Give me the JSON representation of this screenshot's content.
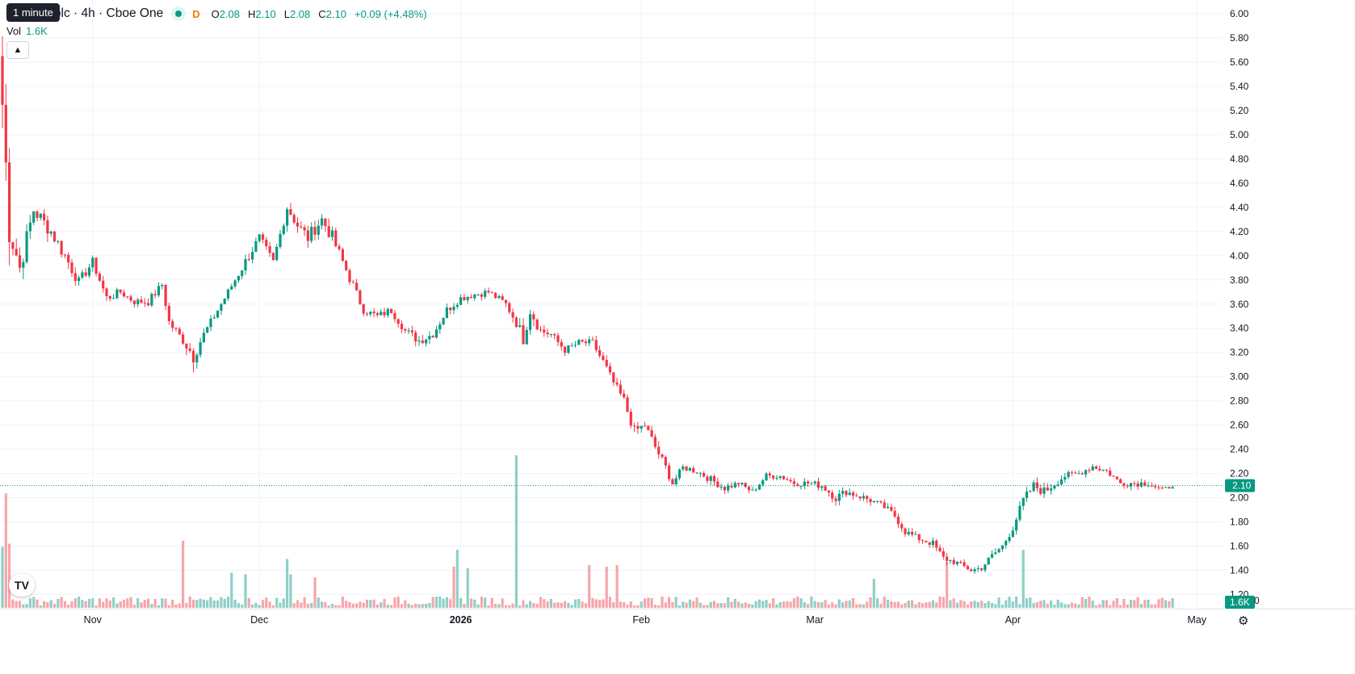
{
  "header": {
    "tooltip": "1 minute",
    "title": "a plc · 4h · Cboe One",
    "market_status_dot": "green-dot-icon",
    "d_marker": "D",
    "ohlc": [
      {
        "label": "O",
        "value": "2.08"
      },
      {
        "label": "H",
        "value": "2.10"
      },
      {
        "label": "L",
        "value": "2.08"
      },
      {
        "label": "C",
        "value": "2.10"
      }
    ],
    "change": "+0.09 (+4.48%)"
  },
  "volume_legend": {
    "label": "Vol",
    "value": "1.6K"
  },
  "collapse_icon": "chevron-up-icon",
  "logo_text": "TV",
  "settings_icon": "gear-icon",
  "colors": {
    "up": "#089981",
    "down": "#f23645",
    "up_vol": "#8fcfc6",
    "down_vol": "#f6a6ab",
    "grid": "#f0f3fa",
    "price_line": "#089981"
  },
  "chart_data": {
    "type": "candlestick",
    "last_price": 2.1,
    "last_price_label": "2.10",
    "last_volume_label": "1.6K",
    "axis_volume_stub": "0",
    "y_ticks": [
      "1.20",
      "1.40",
      "1.60",
      "1.80",
      "2.00",
      "2.20",
      "2.40",
      "2.60",
      "2.80",
      "3.00",
      "3.20",
      "3.40",
      "3.60",
      "3.80",
      "4.00",
      "4.20",
      "4.40",
      "4.60",
      "4.80",
      "5.00",
      "5.20",
      "5.40",
      "5.60",
      "5.80",
      "6.00"
    ],
    "ylim": [
      1.1,
      6.05
    ],
    "x_labels": [
      {
        "text": "Nov",
        "bold": false,
        "bar": 26
      },
      {
        "text": "Dec",
        "bold": false,
        "bar": 74
      },
      {
        "text": "2026",
        "bold": true,
        "bar": 132
      },
      {
        "text": "Feb",
        "bold": false,
        "bar": 184
      },
      {
        "text": "Mar",
        "bold": false,
        "bar": 234
      },
      {
        "text": "Apr",
        "bold": false,
        "bar": 291
      },
      {
        "text": "May",
        "bold": false,
        "bar": 344
      }
    ],
    "anchors": [
      [
        0,
        5.25,
        0.55
      ],
      [
        2,
        4.25,
        0.6
      ],
      [
        5,
        3.9,
        0.3
      ],
      [
        9,
        4.38,
        0.25
      ],
      [
        14,
        4.2,
        0.2
      ],
      [
        18,
        4.0,
        0.2
      ],
      [
        22,
        3.78,
        0.15
      ],
      [
        26,
        3.95,
        0.12
      ],
      [
        30,
        3.65,
        0.15
      ],
      [
        34,
        3.7,
        0.1
      ],
      [
        38,
        3.62,
        0.1
      ],
      [
        42,
        3.62,
        0.12
      ],
      [
        46,
        3.76,
        0.1
      ],
      [
        48,
        3.45,
        0.15
      ],
      [
        52,
        3.3,
        0.12
      ],
      [
        55,
        3.18,
        0.25
      ],
      [
        58,
        3.35,
        0.12
      ],
      [
        62,
        3.55,
        0.1
      ],
      [
        66,
        3.75,
        0.1
      ],
      [
        70,
        3.95,
        0.15
      ],
      [
        74,
        4.15,
        0.12
      ],
      [
        78,
        3.95,
        0.1
      ],
      [
        82,
        4.4,
        0.15
      ],
      [
        85,
        4.25,
        0.15
      ],
      [
        88,
        4.15,
        0.2
      ],
      [
        92,
        4.3,
        0.15
      ],
      [
        95,
        4.15,
        0.2
      ],
      [
        98,
        3.95,
        0.15
      ],
      [
        101,
        3.75,
        0.15
      ],
      [
        104,
        3.55,
        0.1
      ],
      [
        108,
        3.5,
        0.1
      ],
      [
        112,
        3.55,
        0.12
      ],
      [
        116,
        3.38,
        0.1
      ],
      [
        120,
        3.3,
        0.15
      ],
      [
        124,
        3.35,
        0.1
      ],
      [
        128,
        3.55,
        0.12
      ],
      [
        132,
        3.65,
        0.1
      ],
      [
        136,
        3.68,
        0.1
      ],
      [
        140,
        3.7,
        0.1
      ],
      [
        145,
        3.6,
        0.1
      ],
      [
        148,
        3.45,
        0.15
      ],
      [
        150,
        3.32,
        0.2
      ],
      [
        152,
        3.55,
        0.18
      ],
      [
        155,
        3.38,
        0.15
      ],
      [
        158,
        3.35,
        0.1
      ],
      [
        162,
        3.22,
        0.1
      ],
      [
        166,
        3.28,
        0.1
      ],
      [
        170,
        3.28,
        0.1
      ],
      [
        173,
        3.12,
        0.15
      ],
      [
        176,
        2.95,
        0.1
      ],
      [
        179,
        2.8,
        0.15
      ],
      [
        182,
        2.55,
        0.15
      ],
      [
        185,
        2.6,
        0.1
      ],
      [
        188,
        2.42,
        0.15
      ],
      [
        191,
        2.25,
        0.12
      ],
      [
        193,
        2.12,
        0.12
      ],
      [
        196,
        2.25,
        0.08
      ],
      [
        200,
        2.22,
        0.1
      ],
      [
        204,
        2.15,
        0.1
      ],
      [
        208,
        2.08,
        0.1
      ],
      [
        212,
        2.12,
        0.08
      ],
      [
        216,
        2.05,
        0.08
      ],
      [
        220,
        2.18,
        0.08
      ],
      [
        224,
        2.18,
        0.08
      ],
      [
        228,
        2.12,
        0.08
      ],
      [
        232,
        2.12,
        0.1
      ],
      [
        236,
        2.1,
        0.1
      ],
      [
        240,
        2.0,
        0.12
      ],
      [
        243,
        2.05,
        0.1
      ],
      [
        246,
        2.02,
        0.1
      ],
      [
        250,
        1.98,
        0.1
      ],
      [
        254,
        1.92,
        0.1
      ],
      [
        257,
        1.85,
        0.1
      ],
      [
        260,
        1.72,
        0.1
      ],
      [
        264,
        1.66,
        0.08
      ],
      [
        268,
        1.62,
        0.1
      ],
      [
        271,
        1.5,
        0.1
      ],
      [
        275,
        1.46,
        0.08
      ],
      [
        279,
        1.4,
        0.08
      ],
      [
        282,
        1.42,
        0.08
      ],
      [
        285,
        1.52,
        0.1
      ],
      [
        288,
        1.6,
        0.1
      ],
      [
        291,
        1.75,
        0.1
      ],
      [
        294,
        1.98,
        0.12
      ],
      [
        297,
        2.1,
        0.12
      ],
      [
        300,
        2.05,
        0.15
      ],
      [
        303,
        2.12,
        0.12
      ],
      [
        306,
        2.18,
        0.1
      ],
      [
        310,
        2.2,
        0.08
      ],
      [
        314,
        2.26,
        0.1
      ],
      [
        318,
        2.22,
        0.08
      ],
      [
        322,
        2.12,
        0.08
      ],
      [
        326,
        2.12,
        0.1
      ],
      [
        330,
        2.12,
        0.08
      ],
      [
        334,
        2.06,
        0.08
      ],
      [
        337,
        2.1,
        0.04
      ]
    ],
    "big_volume_bars": [
      [
        0,
        0.4,
        1
      ],
      [
        1,
        0.75,
        0
      ],
      [
        2,
        0.42,
        0
      ],
      [
        52,
        0.44,
        0
      ],
      [
        66,
        0.23,
        1
      ],
      [
        70,
        0.22,
        1
      ],
      [
        82,
        0.32,
        1
      ],
      [
        83,
        0.22,
        1
      ],
      [
        90,
        0.2,
        0
      ],
      [
        130,
        0.27,
        0
      ],
      [
        131,
        0.38,
        1
      ],
      [
        134,
        0.26,
        1
      ],
      [
        148,
        1.0,
        1
      ],
      [
        169,
        0.28,
        0
      ],
      [
        174,
        0.27,
        0
      ],
      [
        177,
        0.28,
        0
      ],
      [
        251,
        0.19,
        1
      ],
      [
        272,
        0.3,
        0
      ],
      [
        294,
        0.38,
        1
      ]
    ],
    "n_bars": 338
  }
}
